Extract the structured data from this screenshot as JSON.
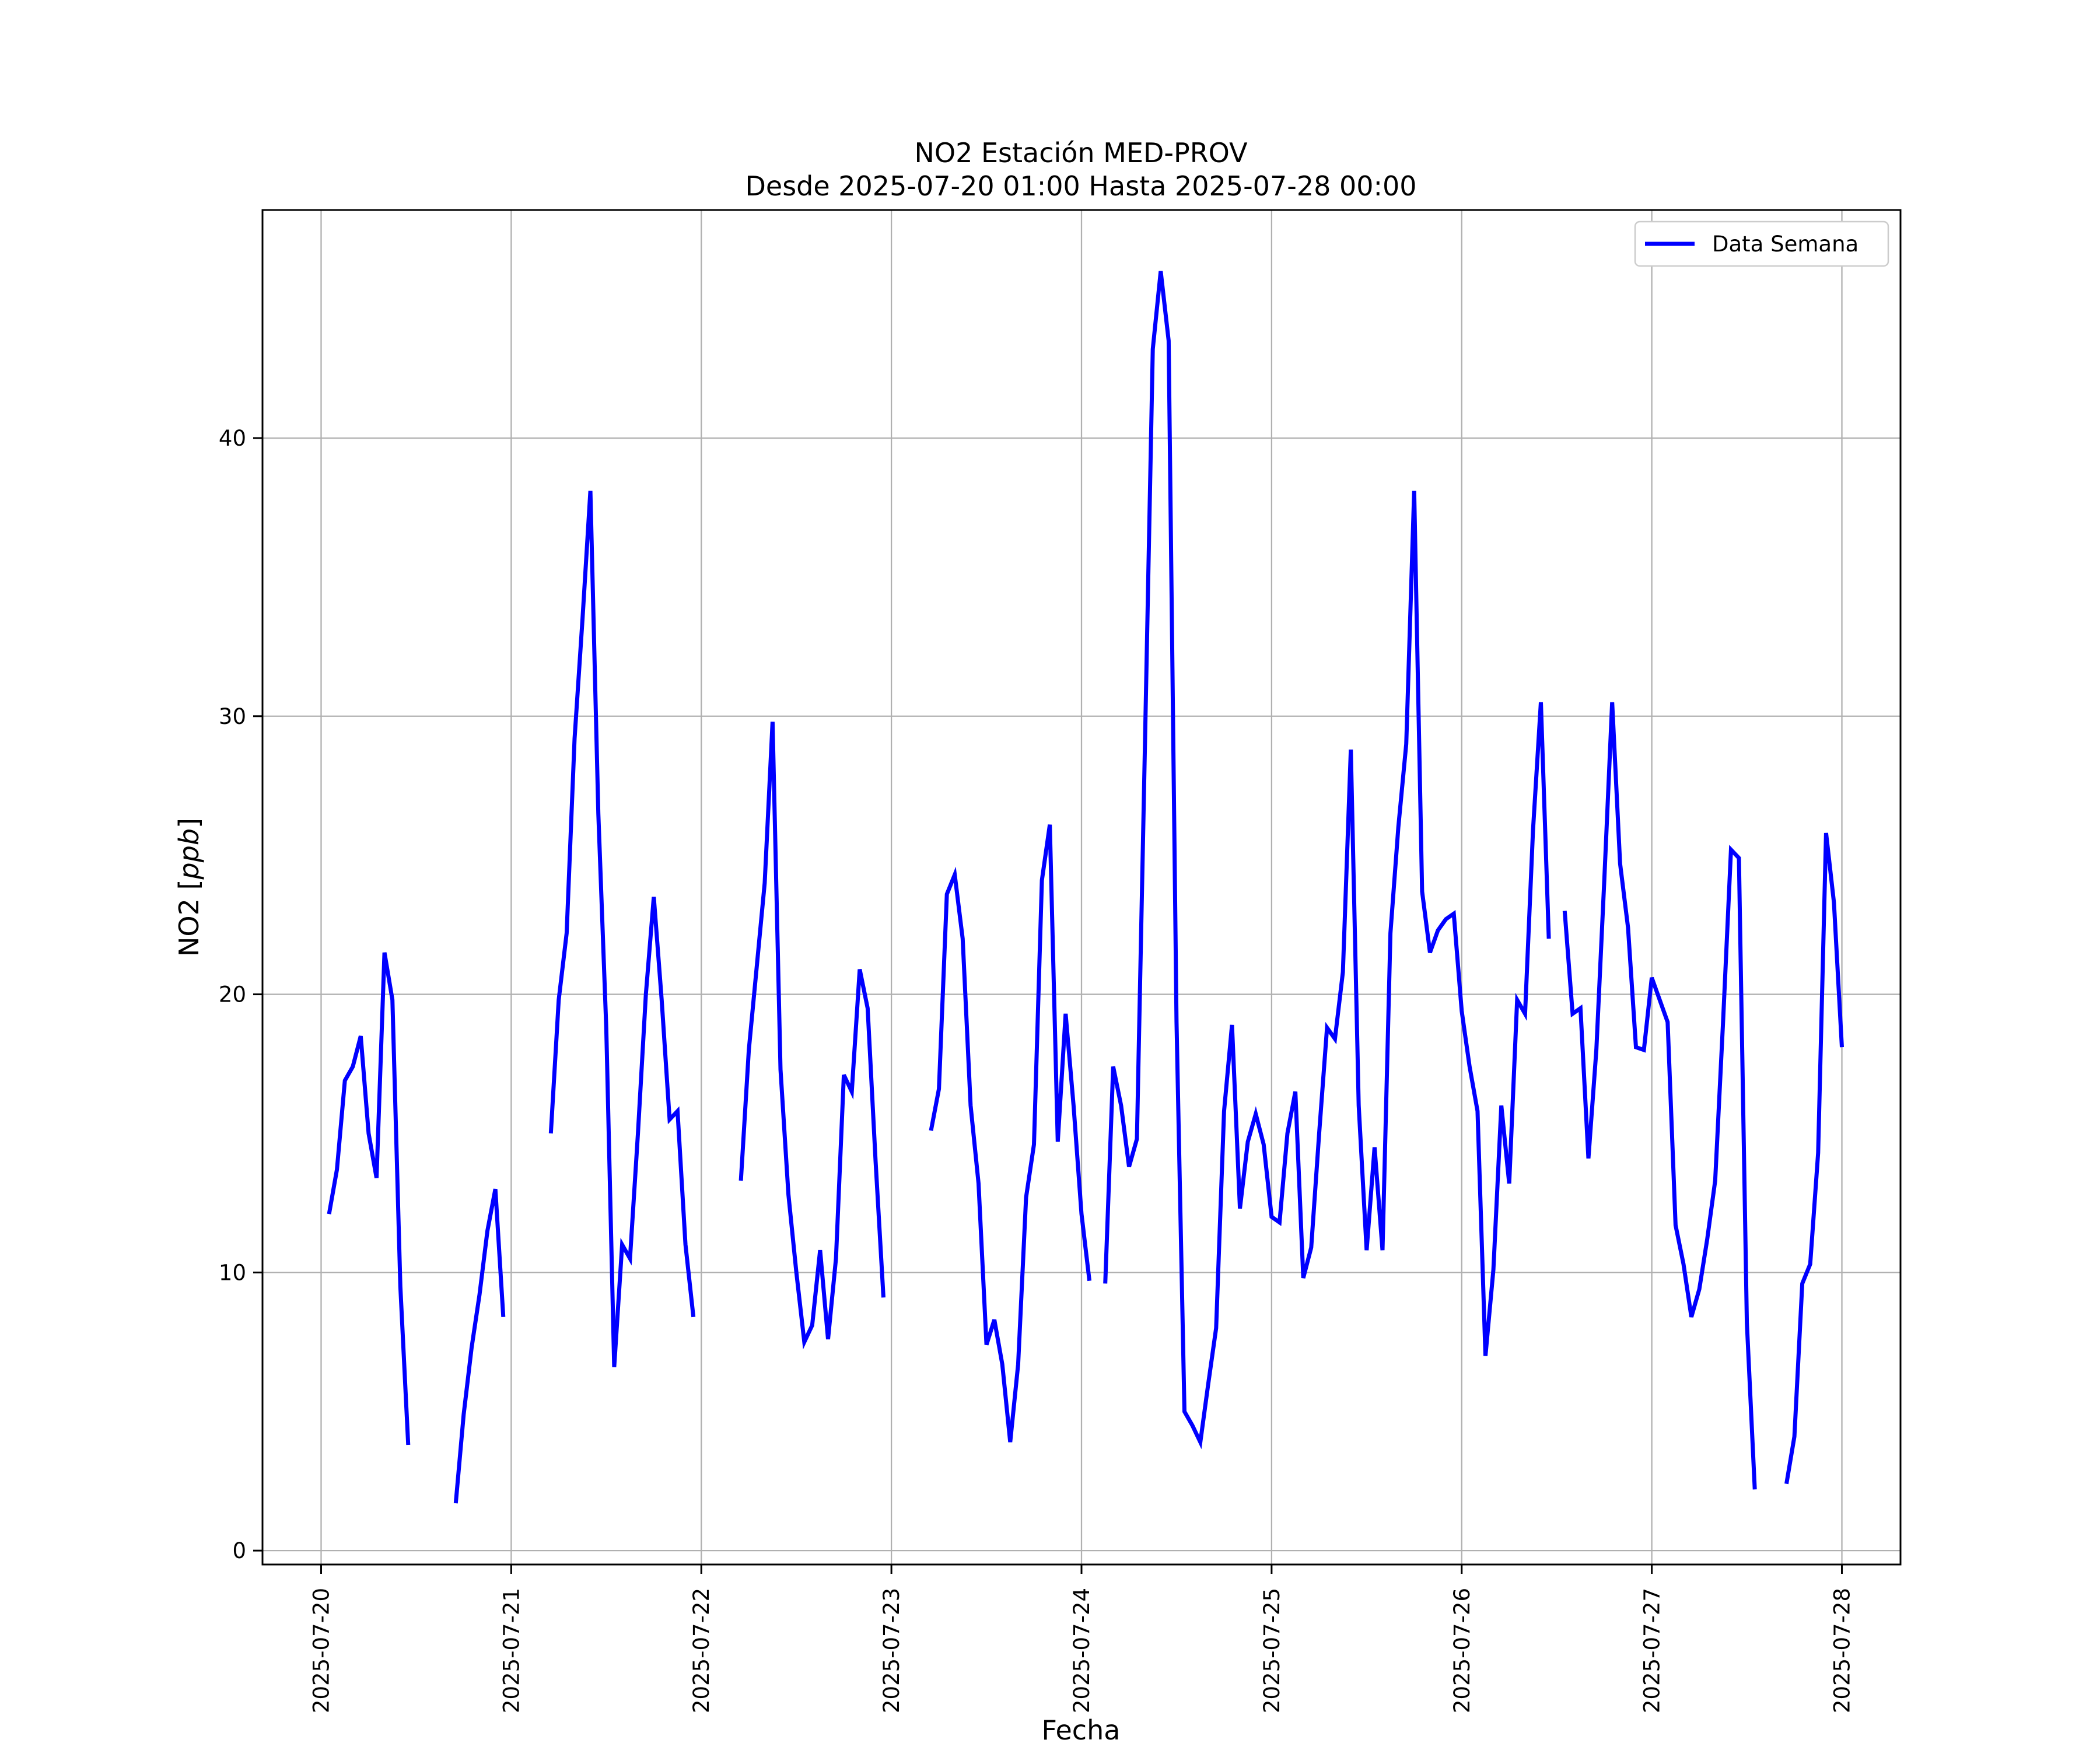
{
  "chart_data": {
    "type": "line",
    "title": "NO2 Estación MED-PROV",
    "subtitle": "Desde 2025-07-20 01:00 Hasta 2025-07-28 00:00",
    "xlabel": "Fecha",
    "ylabel": "NO2 [ppb]",
    "ylim": [
      -0.5,
      48.2
    ],
    "xlim": [
      "2025-07-19 16:36",
      "2025-07-28 07:24"
    ],
    "yticks": [
      0,
      10,
      20,
      30,
      40
    ],
    "xticks": [
      "2025-07-20",
      "2025-07-21",
      "2025-07-22",
      "2025-07-23",
      "2025-07-24",
      "2025-07-25",
      "2025-07-26",
      "2025-07-27",
      "2025-07-28"
    ],
    "grid": true,
    "legend_position": "top-right",
    "line_color": "#0000ff",
    "series": [
      {
        "name": "Data Semana",
        "segments": [
          [
            [
              "2025-07-20 01:00",
              12.1
            ],
            [
              "2025-07-20 02:00",
              13.7
            ],
            [
              "2025-07-20 03:00",
              16.9
            ],
            [
              "2025-07-20 04:00",
              17.4
            ],
            [
              "2025-07-20 05:00",
              18.5
            ],
            [
              "2025-07-20 06:00",
              15.0
            ],
            [
              "2025-07-20 07:00",
              13.4
            ],
            [
              "2025-07-20 08:00",
              21.5
            ],
            [
              "2025-07-20 09:00",
              19.8
            ],
            [
              "2025-07-20 10:00",
              9.5
            ],
            [
              "2025-07-20 11:00",
              3.8
            ]
          ],
          [
            [
              "2025-07-20 17:00",
              1.7
            ],
            [
              "2025-07-20 18:00",
              4.9
            ],
            [
              "2025-07-20 19:00",
              7.3
            ],
            [
              "2025-07-20 20:00",
              9.2
            ],
            [
              "2025-07-20 21:00",
              11.5
            ],
            [
              "2025-07-20 22:00",
              13.0
            ],
            [
              "2025-07-20 23:00",
              8.4
            ]
          ],
          [
            [
              "2025-07-21 05:00",
              15.0
            ],
            [
              "2025-07-21 06:00",
              19.8
            ],
            [
              "2025-07-21 07:00",
              22.2
            ],
            [
              "2025-07-21 08:00",
              29.2
            ],
            [
              "2025-07-21 09:00",
              33.5
            ],
            [
              "2025-07-21 10:00",
              38.1
            ],
            [
              "2025-07-21 11:00",
              26.5
            ],
            [
              "2025-07-21 12:00",
              18.8
            ],
            [
              "2025-07-21 13:00",
              6.6
            ],
            [
              "2025-07-21 14:00",
              11.0
            ],
            [
              "2025-07-21 15:00",
              10.5
            ],
            [
              "2025-07-21 16:00",
              15.0
            ],
            [
              "2025-07-21 17:00",
              20.0
            ],
            [
              "2025-07-21 18:00",
              23.5
            ],
            [
              "2025-07-21 19:00",
              19.8
            ],
            [
              "2025-07-21 20:00",
              15.5
            ],
            [
              "2025-07-21 21:00",
              15.8
            ],
            [
              "2025-07-21 22:00",
              11.0
            ],
            [
              "2025-07-21 23:00",
              8.4
            ]
          ],
          [
            [
              "2025-07-22 05:00",
              13.3
            ],
            [
              "2025-07-22 06:00",
              18.0
            ],
            [
              "2025-07-22 07:00",
              21.0
            ],
            [
              "2025-07-22 08:00",
              24.0
            ],
            [
              "2025-07-22 09:00",
              29.8
            ],
            [
              "2025-07-22 10:00",
              17.3
            ],
            [
              "2025-07-22 11:00",
              12.8
            ],
            [
              "2025-07-22 12:00",
              10.0
            ],
            [
              "2025-07-22 13:00",
              7.5
            ],
            [
              "2025-07-22 14:00",
              8.1
            ],
            [
              "2025-07-22 15:00",
              10.8
            ],
            [
              "2025-07-22 16:00",
              7.6
            ],
            [
              "2025-07-22 17:00",
              10.5
            ],
            [
              "2025-07-22 18:00",
              17.1
            ],
            [
              "2025-07-22 19:00",
              16.5
            ],
            [
              "2025-07-22 20:00",
              20.9
            ],
            [
              "2025-07-22 21:00",
              19.5
            ],
            [
              "2025-07-22 22:00",
              14.0
            ],
            [
              "2025-07-22 23:00",
              9.1
            ]
          ],
          [
            [
              "2025-07-23 05:00",
              15.1
            ],
            [
              "2025-07-23 06:00",
              16.6
            ],
            [
              "2025-07-23 07:00",
              23.6
            ],
            [
              "2025-07-23 08:00",
              24.3
            ],
            [
              "2025-07-23 09:00",
              22.0
            ],
            [
              "2025-07-23 10:00",
              16.0
            ],
            [
              "2025-07-23 11:00",
              13.2
            ],
            [
              "2025-07-23 12:00",
              7.4
            ],
            [
              "2025-07-23 13:00",
              8.3
            ],
            [
              "2025-07-23 14:00",
              6.7
            ],
            [
              "2025-07-23 15:00",
              3.9
            ],
            [
              "2025-07-23 16:00",
              6.7
            ],
            [
              "2025-07-23 17:00",
              12.7
            ],
            [
              "2025-07-23 18:00",
              14.6
            ],
            [
              "2025-07-23 19:00",
              24.1
            ],
            [
              "2025-07-23 20:00",
              26.1
            ],
            [
              "2025-07-23 21:00",
              14.7
            ],
            [
              "2025-07-23 22:00",
              19.3
            ],
            [
              "2025-07-23 23:00",
              16.0
            ],
            [
              "2025-07-24 00:00",
              12.1
            ],
            [
              "2025-07-24 01:00",
              9.7
            ]
          ],
          [
            [
              "2025-07-24 03:00",
              9.6
            ],
            [
              "2025-07-24 04:00",
              17.4
            ],
            [
              "2025-07-24 05:00",
              16.0
            ],
            [
              "2025-07-24 06:00",
              13.8
            ],
            [
              "2025-07-24 07:00",
              14.8
            ],
            [
              "2025-07-24 08:00",
              28.8
            ],
            [
              "2025-07-24 09:00",
              43.2
            ],
            [
              "2025-07-24 10:00",
              46.0
            ],
            [
              "2025-07-24 11:00",
              43.5
            ],
            [
              "2025-07-24 12:00",
              19.0
            ],
            [
              "2025-07-24 13:00",
              5.0
            ],
            [
              "2025-07-24 14:00",
              4.5
            ],
            [
              "2025-07-24 15:00",
              3.9
            ],
            [
              "2025-07-24 16:00",
              6.0
            ],
            [
              "2025-07-24 17:00",
              8.0
            ],
            [
              "2025-07-24 18:00",
              15.8
            ],
            [
              "2025-07-24 19:00",
              18.9
            ],
            [
              "2025-07-24 20:00",
              12.3
            ],
            [
              "2025-07-24 21:00",
              14.7
            ],
            [
              "2025-07-24 22:00",
              15.7
            ],
            [
              "2025-07-24 23:00",
              14.6
            ],
            [
              "2025-07-25 00:00",
              12.0
            ],
            [
              "2025-07-25 01:00",
              11.8
            ],
            [
              "2025-07-25 02:00",
              15.0
            ],
            [
              "2025-07-25 03:00",
              16.5
            ],
            [
              "2025-07-25 04:00",
              9.8
            ],
            [
              "2025-07-25 05:00",
              10.9
            ],
            [
              "2025-07-25 06:00",
              15.0
            ],
            [
              "2025-07-25 07:00",
              18.8
            ],
            [
              "2025-07-25 08:00",
              18.4
            ],
            [
              "2025-07-25 09:00",
              20.8
            ],
            [
              "2025-07-25 10:00",
              28.8
            ],
            [
              "2025-07-25 11:00",
              16.0
            ],
            [
              "2025-07-25 12:00",
              10.8
            ],
            [
              "2025-07-25 13:00",
              14.5
            ],
            [
              "2025-07-25 14:00",
              10.8
            ],
            [
              "2025-07-25 15:00",
              22.2
            ],
            [
              "2025-07-25 16:00",
              26.0
            ],
            [
              "2025-07-25 17:00",
              29.0
            ],
            [
              "2025-07-25 18:00",
              38.1
            ],
            [
              "2025-07-25 19:00",
              23.7
            ],
            [
              "2025-07-25 20:00",
              21.5
            ],
            [
              "2025-07-25 21:00",
              22.3
            ],
            [
              "2025-07-25 22:00",
              22.7
            ],
            [
              "2025-07-25 23:00",
              22.9
            ],
            [
              "2025-07-26 00:00",
              19.4
            ],
            [
              "2025-07-26 01:00",
              17.4
            ],
            [
              "2025-07-26 02:00",
              15.8
            ],
            [
              "2025-07-26 03:00",
              7.0
            ],
            [
              "2025-07-26 04:00",
              10.1
            ],
            [
              "2025-07-26 05:00",
              16.0
            ],
            [
              "2025-07-26 06:00",
              13.2
            ],
            [
              "2025-07-26 07:00",
              19.8
            ],
            [
              "2025-07-26 08:00",
              19.3
            ],
            [
              "2025-07-26 09:00",
              25.9
            ],
            [
              "2025-07-26 10:00",
              30.5
            ],
            [
              "2025-07-26 11:00",
              22.0
            ]
          ],
          [
            [
              "2025-07-26 13:00",
              23.0
            ],
            [
              "2025-07-26 14:00",
              19.3
            ],
            [
              "2025-07-26 15:00",
              19.5
            ],
            [
              "2025-07-26 16:00",
              14.1
            ],
            [
              "2025-07-26 17:00",
              18.0
            ],
            [
              "2025-07-26 18:00",
              24.1
            ],
            [
              "2025-07-26 19:00",
              30.5
            ],
            [
              "2025-07-26 20:00",
              24.7
            ],
            [
              "2025-07-26 21:00",
              22.4
            ],
            [
              "2025-07-26 22:00",
              18.1
            ],
            [
              "2025-07-26 23:00",
              18.0
            ],
            [
              "2025-07-27 00:00",
              20.6
            ],
            [
              "2025-07-27 01:00",
              19.8
            ],
            [
              "2025-07-27 02:00",
              19.0
            ],
            [
              "2025-07-27 03:00",
              11.7
            ],
            [
              "2025-07-27 04:00",
              10.3
            ],
            [
              "2025-07-27 05:00",
              8.4
            ],
            [
              "2025-07-27 06:00",
              9.4
            ],
            [
              "2025-07-27 07:00",
              11.2
            ],
            [
              "2025-07-27 08:00",
              13.3
            ],
            [
              "2025-07-27 09:00",
              19.0
            ],
            [
              "2025-07-27 10:00",
              25.2
            ],
            [
              "2025-07-27 11:00",
              24.9
            ],
            [
              "2025-07-27 12:00",
              8.2
            ],
            [
              "2025-07-27 13:00",
              2.2
            ]
          ],
          [
            [
              "2025-07-27 17:00",
              2.4
            ],
            [
              "2025-07-27 18:00",
              4.1
            ],
            [
              "2025-07-27 19:00",
              9.6
            ],
            [
              "2025-07-27 20:00",
              10.3
            ],
            [
              "2025-07-27 21:00",
              14.3
            ],
            [
              "2025-07-27 22:00",
              25.8
            ],
            [
              "2025-07-27 23:00",
              23.3
            ],
            [
              "2025-07-28 00:00",
              18.1
            ]
          ]
        ]
      }
    ]
  }
}
